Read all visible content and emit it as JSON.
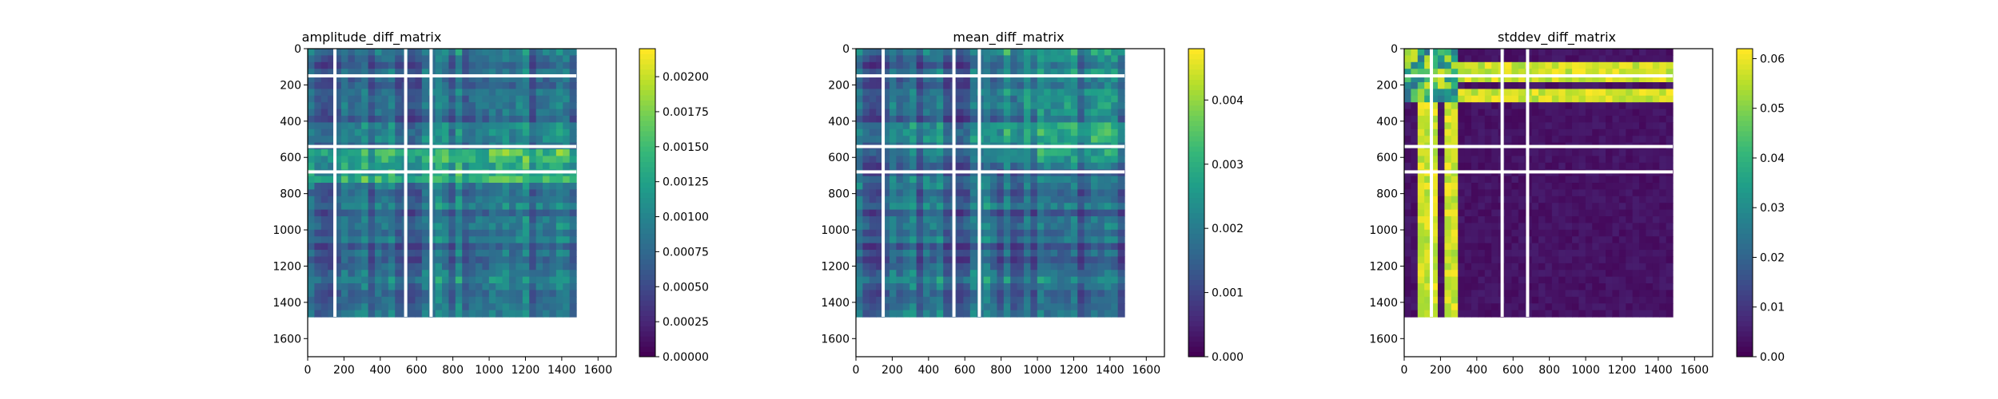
{
  "chart_data": [
    {
      "type": "heatmap",
      "title": "amplitude_diff_matrix",
      "xlabel": "",
      "ylabel": "",
      "size": 1480,
      "xlim": [
        0,
        1700
      ],
      "ylim": [
        1700,
        0
      ],
      "x_ticks": [
        0,
        200,
        400,
        600,
        800,
        1000,
        1200,
        1400,
        1600
      ],
      "y_ticks": [
        0,
        200,
        400,
        600,
        800,
        1000,
        1200,
        1400,
        1600
      ],
      "nan_rows": [
        150,
        540,
        680
      ],
      "nan_cols": [
        150,
        540,
        680
      ],
      "colormap": "viridis",
      "colorbar_range": [
        0,
        0.0022
      ],
      "colorbar_ticks": [
        "0.00000",
        "0.00025",
        "0.00050",
        "0.00075",
        "0.00100",
        "0.00125",
        "0.00150",
        "0.00175",
        "0.00200"
      ],
      "colorbar_tick_values": [
        0,
        0.00025,
        0.0005,
        0.00075,
        0.001,
        0.00125,
        0.0015,
        0.00175,
        0.002
      ],
      "grid": false
    },
    {
      "type": "heatmap",
      "title": "mean_diff_matrix",
      "xlabel": "",
      "ylabel": "",
      "size": 1480,
      "xlim": [
        0,
        1700
      ],
      "ylim": [
        1700,
        0
      ],
      "x_ticks": [
        0,
        200,
        400,
        600,
        800,
        1000,
        1200,
        1400,
        1600
      ],
      "y_ticks": [
        0,
        200,
        400,
        600,
        800,
        1000,
        1200,
        1400,
        1600
      ],
      "nan_rows": [
        150,
        540,
        680
      ],
      "nan_cols": [
        150,
        540,
        680
      ],
      "colormap": "viridis",
      "colorbar_range": [
        0,
        0.0048
      ],
      "colorbar_ticks": [
        "0.000",
        "0.001",
        "0.002",
        "0.003",
        "0.004"
      ],
      "colorbar_tick_values": [
        0,
        0.001,
        0.002,
        0.003,
        0.004
      ],
      "grid": false
    },
    {
      "type": "heatmap",
      "title": "stddev_diff_matrix",
      "xlabel": "",
      "ylabel": "",
      "size": 1480,
      "xlim": [
        0,
        1700
      ],
      "ylim": [
        1700,
        0
      ],
      "x_ticks": [
        0,
        200,
        400,
        600,
        800,
        1000,
        1200,
        1400,
        1600
      ],
      "y_ticks": [
        0,
        200,
        400,
        600,
        800,
        1000,
        1200,
        1400,
        1600
      ],
      "nan_rows": [
        150,
        540,
        680
      ],
      "nan_cols": [
        150,
        540,
        680
      ],
      "colormap": "viridis",
      "colorbar_range": [
        0,
        0.062
      ],
      "colorbar_ticks": [
        "0.00",
        "0.01",
        "0.02",
        "0.03",
        "0.04",
        "0.05",
        "0.06"
      ],
      "colorbar_tick_values": [
        0,
        0.01,
        0.02,
        0.03,
        0.04,
        0.05,
        0.06
      ],
      "grid": false
    }
  ]
}
